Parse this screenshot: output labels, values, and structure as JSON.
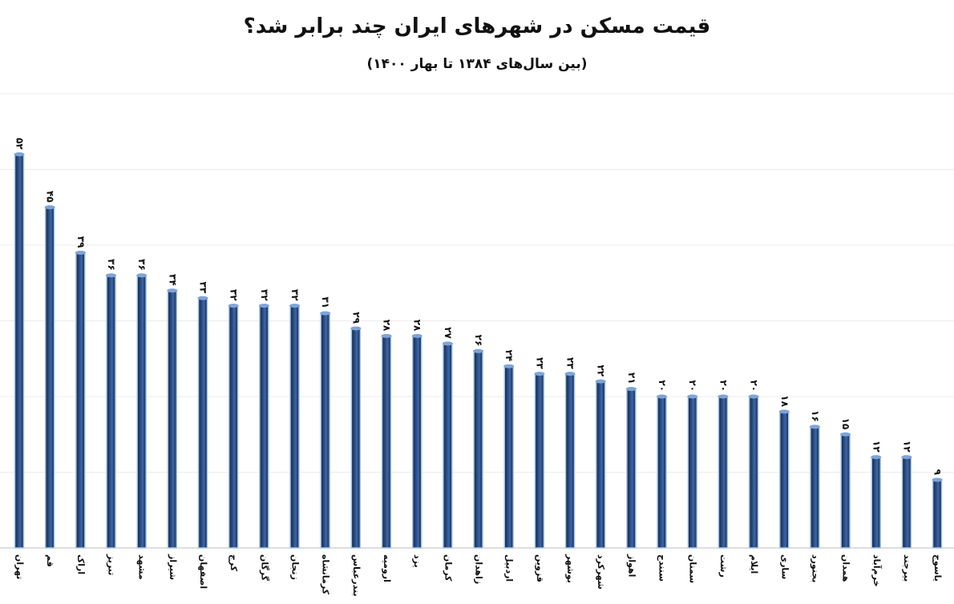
{
  "chart_data": {
    "type": "bar",
    "title": "قیمت مسکن در شهرهای ایران چند برابر شد؟",
    "subtitle": "(بین سال‌های ۱۳۸۴ تا بهار ۱۴۰۰)",
    "categories": [
      "تهران",
      "قم",
      "اراک",
      "تبریز",
      "مشهد",
      "شیراز",
      "اصفهان",
      "کرج",
      "گرگان",
      "زنجان",
      "کرمانشاه",
      "بندرعباس",
      "ارومیه",
      "یزد",
      "کرمان",
      "زاهدان",
      "اردبیل",
      "قزوین",
      "بوشهر",
      "شهرکرد",
      "اهواز",
      "سنندج",
      "سمنان",
      "رشت",
      "ایلام",
      "ساری",
      "بجنورد",
      "همدان",
      "خرم‌آباد",
      "بیرجند",
      "یاسوج"
    ],
    "values": [
      52,
      45,
      39,
      36,
      36,
      34,
      33,
      32,
      32,
      32,
      31,
      29,
      28,
      28,
      27,
      26,
      24,
      23,
      23,
      22,
      21,
      20,
      20,
      20,
      20,
      18,
      16,
      15,
      12,
      12,
      9
    ],
    "value_labels": [
      "۵۲",
      "۴۵",
      "۳۹",
      "۳۶",
      "۳۶",
      "۳۴",
      "۳۳",
      "۳۲",
      "۳۲",
      "۳۲",
      "۳۱",
      "۲۹",
      "۲۸",
      "۲۸",
      "۲۷",
      "۲۶",
      "۲۴",
      "۲۳",
      "۲۳",
      "۲۲",
      "۲۱",
      "۲۰",
      "۲۰",
      "۲۰",
      "۲۰",
      "۱۸",
      "۱۶",
      "۱۵",
      "۱۲",
      "۱۲",
      "۹"
    ],
    "ylim": [
      0,
      60
    ],
    "grid": true,
    "colors": {
      "bar": "#2a4f86",
      "bar_dark": "#13294d",
      "bar_light": "#7ea4d8",
      "bar_outline": "#a9c4ea"
    }
  }
}
